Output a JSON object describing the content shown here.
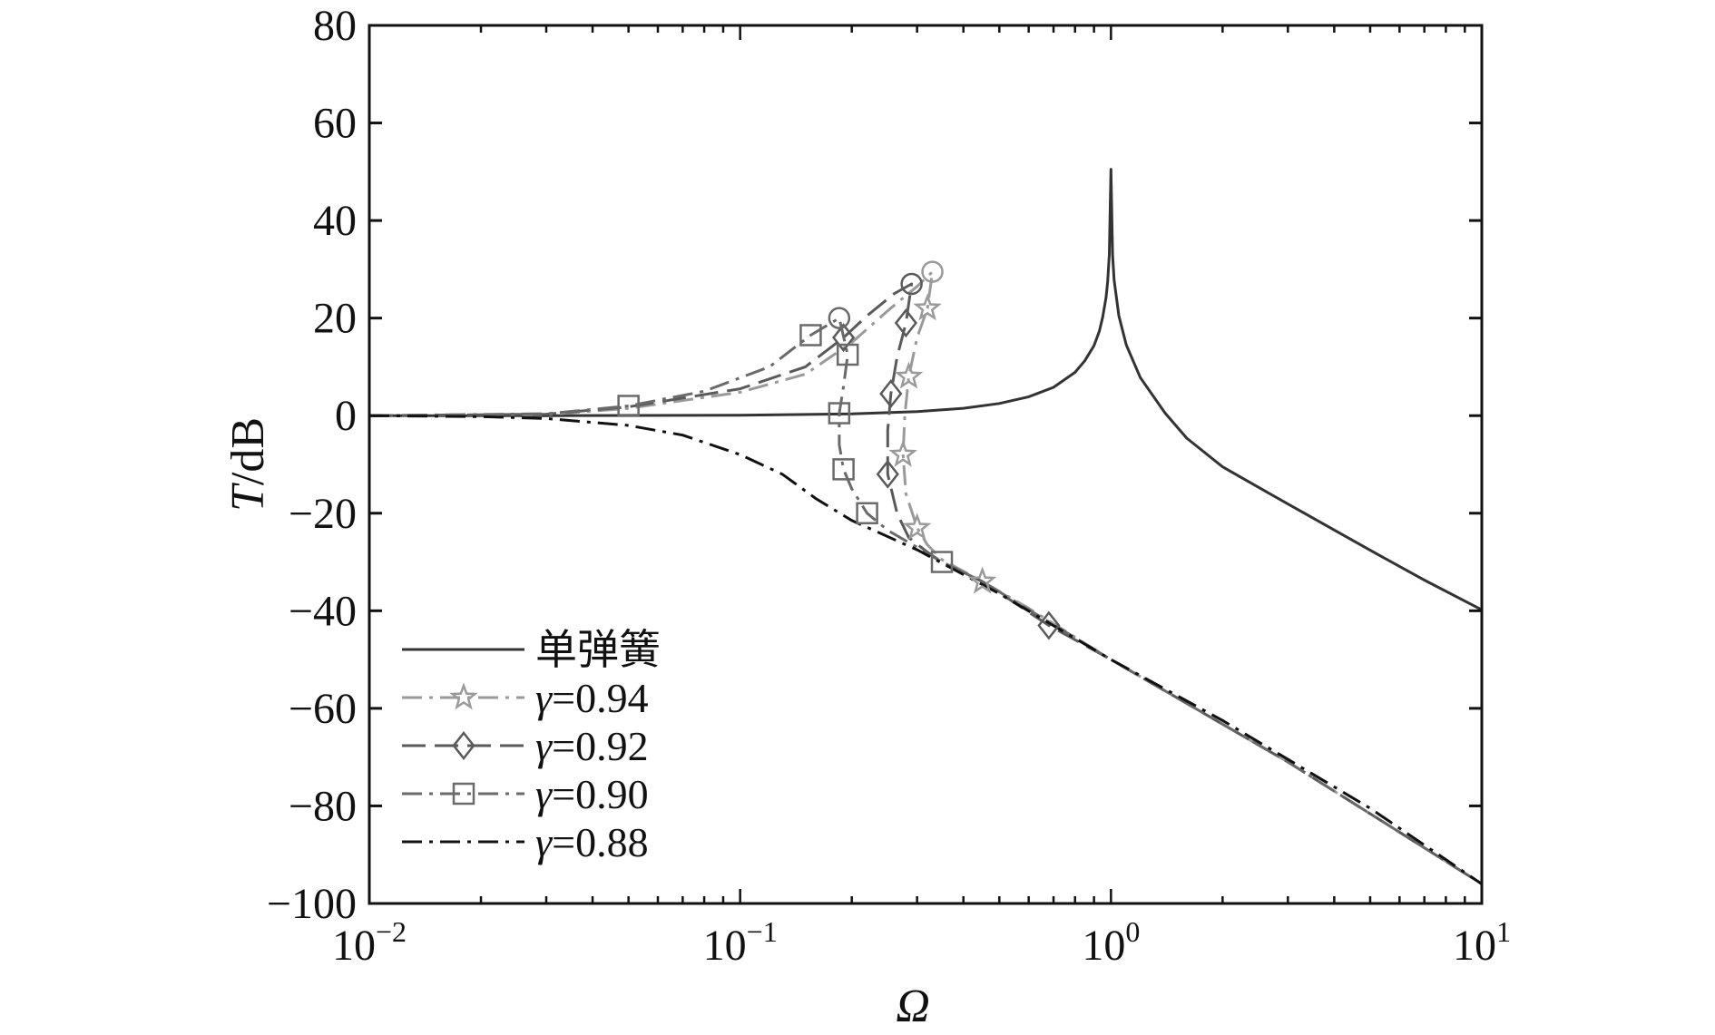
{
  "chart_data": {
    "type": "line",
    "title": "",
    "xlabel": "Ω",
    "ylabel": {
      "symbol": "T",
      "unit": "/dB"
    },
    "x_scale": "log",
    "xlim": [
      0.01,
      10
    ],
    "ylim": [
      -100,
      80
    ],
    "grid": false,
    "legend_position": "bottom-left",
    "x_ticks": [
      {
        "value": 0.01,
        "base": "10",
        "exp": "−2"
      },
      {
        "value": 0.1,
        "base": "10",
        "exp": "−1"
      },
      {
        "value": 1,
        "base": "10",
        "exp": "0"
      },
      {
        "value": 10,
        "base": "10",
        "exp": "1"
      }
    ],
    "y_ticks": [
      {
        "value": 80,
        "label": "80"
      },
      {
        "value": 60,
        "label": "60"
      },
      {
        "value": 40,
        "label": "40"
      },
      {
        "value": 20,
        "label": "20"
      },
      {
        "value": 0,
        "label": "0"
      },
      {
        "value": -20,
        "label": "−20"
      },
      {
        "value": -40,
        "label": "−40"
      },
      {
        "value": -60,
        "label": "−60"
      },
      {
        "value": -80,
        "label": "−80"
      },
      {
        "value": -100,
        "label": "−100"
      }
    ],
    "series": [
      {
        "name": "单弹簧",
        "style": "solid",
        "marker": "none",
        "color": "#333333",
        "points": [
          [
            0.01,
            0
          ],
          [
            0.03,
            0.01
          ],
          [
            0.1,
            0.09
          ],
          [
            0.2,
            0.36
          ],
          [
            0.3,
            0.82
          ],
          [
            0.4,
            1.51
          ],
          [
            0.5,
            2.5
          ],
          [
            0.6,
            3.88
          ],
          [
            0.7,
            5.81
          ],
          [
            0.8,
            8.87
          ],
          [
            0.85,
            11.25
          ],
          [
            0.9,
            14.34
          ],
          [
            0.93,
            17.3
          ],
          [
            0.95,
            20.2
          ],
          [
            0.97,
            24.2
          ],
          [
            0.98,
            27.5
          ],
          [
            0.99,
            33
          ],
          [
            1.0,
            50.5
          ],
          [
            1.01,
            33
          ],
          [
            1.02,
            27.8
          ],
          [
            1.05,
            20.5
          ],
          [
            1.1,
            14.5
          ],
          [
            1.2,
            7.8
          ],
          [
            1.4,
            0.5
          ],
          [
            1.6,
            -4.6
          ],
          [
            2,
            -10.5
          ],
          [
            3,
            -18.1
          ],
          [
            5,
            -27.6
          ],
          [
            7,
            -33.7
          ],
          [
            10,
            -39.8
          ]
        ]
      },
      {
        "name": "γ=0.94",
        "style": "dashdot",
        "marker": "star",
        "color": "#9a9a9a",
        "points": [
          [
            0.01,
            0
          ],
          [
            0.03,
            0.2
          ],
          [
            0.05,
            1.5
          ],
          [
            0.1,
            4.8
          ],
          [
            0.15,
            8.5
          ],
          [
            0.2,
            15
          ],
          [
            0.25,
            21.5
          ],
          [
            0.3,
            26.5
          ],
          [
            0.33,
            29.5
          ],
          [
            0.32,
            22
          ],
          [
            0.3,
            16
          ],
          [
            0.285,
            8
          ],
          [
            0.278,
            0
          ],
          [
            0.275,
            -8
          ],
          [
            0.28,
            -16
          ],
          [
            0.3,
            -23
          ],
          [
            0.32,
            -26.5
          ],
          [
            0.35,
            -29.5
          ],
          [
            0.45,
            -34
          ],
          [
            0.6,
            -39.5
          ],
          [
            1,
            -50
          ],
          [
            3,
            -71
          ],
          [
            10,
            -96
          ]
        ],
        "markers": [
          [
            0.32,
            22
          ],
          [
            0.285,
            8
          ],
          [
            0.275,
            -8
          ],
          [
            0.3,
            -23
          ],
          [
            0.45,
            -34
          ]
        ],
        "endpoint": [
          0.33,
          29.5
        ]
      },
      {
        "name": "γ=0.92",
        "style": "longdash",
        "marker": "diamond",
        "color": "#5a5a5a",
        "points": [
          [
            0.01,
            0
          ],
          [
            0.03,
            0.3
          ],
          [
            0.05,
            1.8
          ],
          [
            0.1,
            5.5
          ],
          [
            0.15,
            10
          ],
          [
            0.19,
            16
          ],
          [
            0.22,
            20.5
          ],
          [
            0.26,
            25
          ],
          [
            0.29,
            27
          ],
          [
            0.28,
            19
          ],
          [
            0.265,
            12
          ],
          [
            0.255,
            4.5
          ],
          [
            0.25,
            -3
          ],
          [
            0.25,
            -12
          ],
          [
            0.265,
            -20
          ],
          [
            0.285,
            -25
          ],
          [
            0.32,
            -28
          ],
          [
            0.35,
            -30
          ],
          [
            0.45,
            -34
          ],
          [
            0.68,
            -43
          ],
          [
            1,
            -50
          ],
          [
            3,
            -71
          ],
          [
            10,
            -96
          ]
        ],
        "markers": [
          [
            0.19,
            16
          ],
          [
            0.28,
            19
          ],
          [
            0.255,
            4.5
          ],
          [
            0.25,
            -12
          ],
          [
            0.68,
            -43
          ]
        ],
        "endpoint": [
          0.29,
          27
        ]
      },
      {
        "name": "γ=0.90",
        "style": "dashdot",
        "marker": "square",
        "color": "#6a6a6a",
        "points": [
          [
            0.01,
            0
          ],
          [
            0.03,
            0.4
          ],
          [
            0.05,
            2
          ],
          [
            0.08,
            5
          ],
          [
            0.12,
            10
          ],
          [
            0.155,
            16.5
          ],
          [
            0.185,
            20
          ],
          [
            0.195,
            12.5
          ],
          [
            0.19,
            6
          ],
          [
            0.185,
            0.5
          ],
          [
            0.185,
            -6
          ],
          [
            0.19,
            -11
          ],
          [
            0.2,
            -15
          ],
          [
            0.22,
            -20
          ],
          [
            0.25,
            -23.5
          ],
          [
            0.3,
            -27
          ],
          [
            0.35,
            -30
          ],
          [
            0.45,
            -34
          ],
          [
            1,
            -50
          ],
          [
            3,
            -71
          ],
          [
            10,
            -96
          ]
        ],
        "markers": [
          [
            0.05,
            2
          ],
          [
            0.155,
            16.5
          ],
          [
            0.195,
            12.5
          ],
          [
            0.185,
            0.5
          ],
          [
            0.19,
            -11
          ],
          [
            0.22,
            -20
          ],
          [
            0.35,
            -30
          ]
        ],
        "endpoint": [
          0.185,
          20
        ]
      },
      {
        "name": "γ=0.88",
        "style": "dashdot",
        "marker": "none",
        "color": "#111111",
        "points": [
          [
            0.01,
            0
          ],
          [
            0.02,
            -0.2
          ],
          [
            0.03,
            -0.6
          ],
          [
            0.05,
            -2
          ],
          [
            0.07,
            -4
          ],
          [
            0.1,
            -8
          ],
          [
            0.13,
            -12
          ],
          [
            0.16,
            -17
          ],
          [
            0.2,
            -21.5
          ],
          [
            0.3,
            -27.5
          ],
          [
            0.5,
            -36.5
          ],
          [
            1,
            -50
          ],
          [
            2,
            -62.5
          ],
          [
            5,
            -80.5
          ],
          [
            10,
            -96
          ]
        ]
      }
    ]
  }
}
